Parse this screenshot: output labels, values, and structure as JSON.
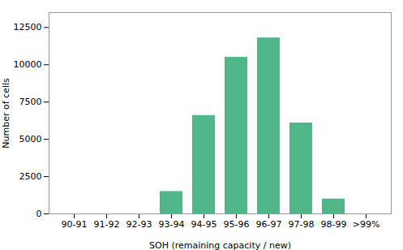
{
  "chart_data": {
    "type": "bar",
    "categories": [
      "90-91",
      "91-92",
      "92-93",
      "93-94",
      "94-95",
      "95-96",
      "96-97",
      "97-98",
      "98-99",
      ">99%"
    ],
    "values": [
      0,
      0,
      0,
      1500,
      6600,
      10500,
      11800,
      6100,
      1000,
      0
    ],
    "color": "#52b788",
    "xlabel": "SOH (remaining capacity / new)",
    "ylabel": "Number of cells",
    "ylim": [
      0,
      13500
    ],
    "yticks": [
      0,
      2500,
      5000,
      7500,
      10000,
      12500
    ],
    "grid": false
  }
}
